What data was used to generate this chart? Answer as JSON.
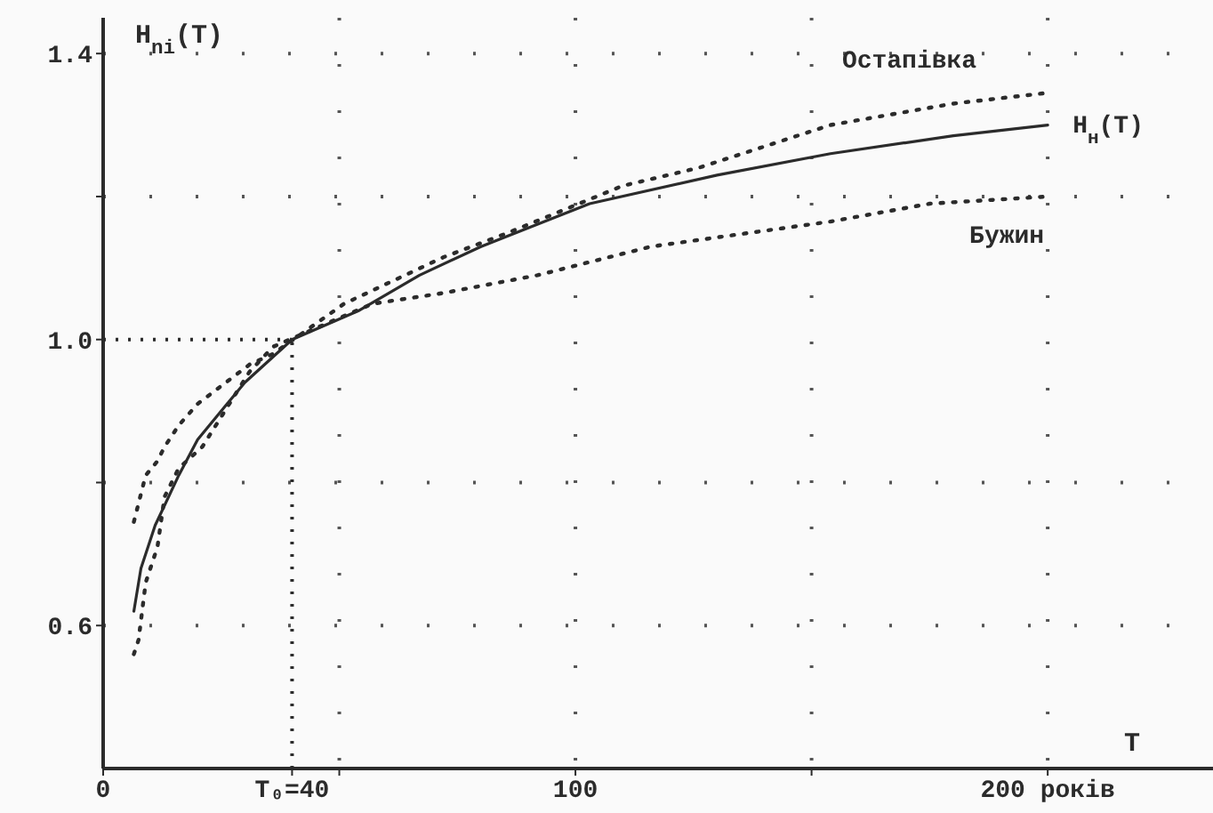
{
  "chart_data": {
    "type": "line",
    "ylabel": "H$_{ni}$(T)",
    "xlabel": "T",
    "xlim": [
      0,
      235
    ],
    "xticks": [
      0,
      {
        "value": 40,
        "label": "T₀=40"
      },
      {
        "value": 50,
        "label": null
      },
      100,
      {
        "value": 150,
        "label": null
      },
      {
        "value": 200,
        "label": "200 років"
      }
    ],
    "ylim": [
      0.4,
      1.45
    ],
    "yticks": [
      0.6,
      {
        "value": 0.8,
        "label": null
      },
      {
        "value": 1.0,
        "label": "1.0"
      },
      {
        "value": 1.2,
        "label": null
      },
      1.4
    ],
    "grid": true,
    "legend": false,
    "marker": "none",
    "ref_lines": [
      {
        "axis": "x",
        "value": 40,
        "line_style": "dotted"
      },
      {
        "axis": "y",
        "value": 1.0,
        "line_style": "dotted"
      }
    ],
    "series": [
      {
        "name": "H$_{н}$(T)",
        "color": "#2b2b2b",
        "line_style": "solid",
        "x": [
          6.5,
          8,
          11,
          16,
          20,
          30,
          40,
          54,
          67,
          80,
          103,
          130,
          154,
          180,
          200
        ],
        "values": [
          0.62,
          0.68,
          0.74,
          0.81,
          0.86,
          0.94,
          1.0,
          1.04,
          1.09,
          1.13,
          1.19,
          1.23,
          1.26,
          1.285,
          1.3
        ]
      },
      {
        "name": "Остапівка",
        "color": "#2b2b2b",
        "line_style": "dotted",
        "x": [
          6.5,
          9,
          11.5,
          13,
          16,
          20,
          31,
          36,
          51,
          72,
          86,
          110,
          126,
          154,
          180,
          200
        ],
        "values": [
          0.745,
          0.81,
          0.83,
          0.85,
          0.88,
          0.91,
          0.965,
          0.98,
          1.05,
          1.115,
          1.15,
          1.215,
          1.24,
          1.3,
          1.33,
          1.345
        ]
      },
      {
        "name": "Бужин",
        "color": "#2b2b2b",
        "line_style": "dotted",
        "x": [
          6.5,
          7.5,
          9,
          11.5,
          13,
          16,
          21,
          31,
          36,
          57,
          72,
          92,
          110,
          116,
          154,
          175,
          200
        ],
        "values": [
          0.56,
          0.58,
          0.66,
          0.71,
          0.78,
          0.82,
          0.85,
          0.955,
          0.99,
          1.05,
          1.065,
          1.09,
          1.12,
          1.13,
          1.165,
          1.19,
          1.2
        ]
      }
    ]
  }
}
